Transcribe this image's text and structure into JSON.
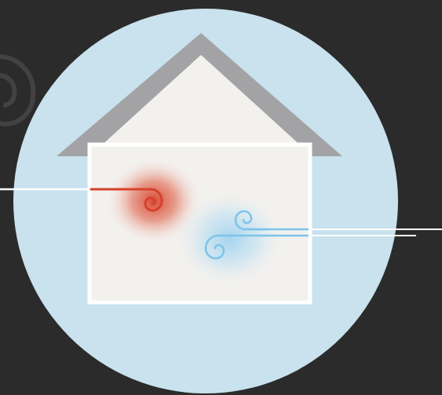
{
  "colors": {
    "background": "#2b2b2b",
    "circle": "#c9e2ed",
    "roof": "#a3a3a6",
    "house_wall": "#f3f1ee",
    "house_frame": "#ffffff",
    "heat": "#d6402b",
    "cool": "#7cc4ea",
    "line": "#ffffff",
    "ghost_swirl": "#5a5a5a"
  },
  "icons": {
    "house": "house-icon",
    "heat_swirl": "heat-swirl-icon",
    "cool_swirl": "cool-swirl-icon",
    "wind_lines": "wind-lines-icon"
  }
}
